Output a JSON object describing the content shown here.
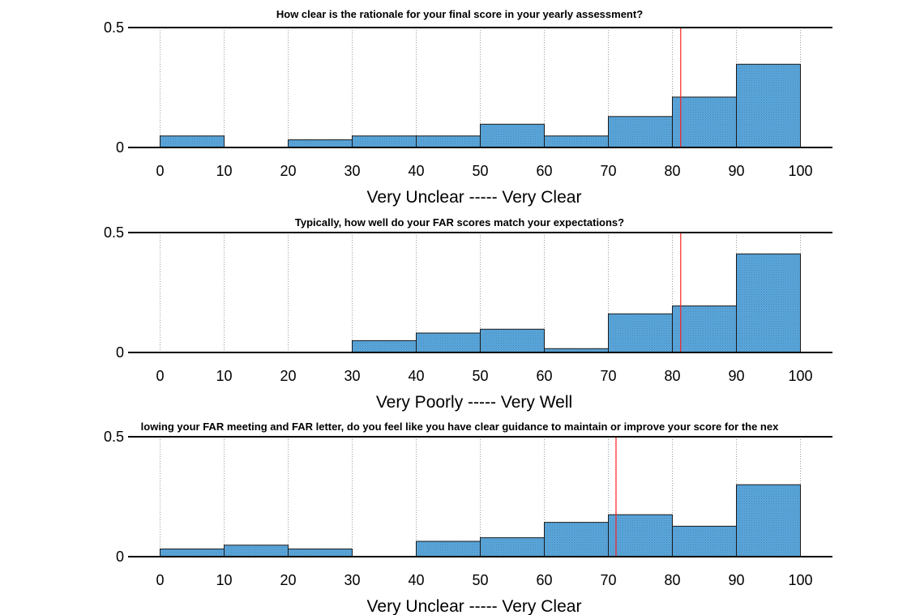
{
  "colors": {
    "bar_fill": "#5ba7dc",
    "bar_edge": "#1a1a1a",
    "mean_line": "#ff2020",
    "grid": "#9a9a9a",
    "axis": "#000000"
  },
  "chart_data": [
    {
      "type": "bar",
      "title": "How clear is the rationale for your final score in your yearly assessment?",
      "xlabel": "Very Unclear ----- Very Clear",
      "ylabel": "",
      "xlim": [
        -5,
        105
      ],
      "ylim": [
        0,
        0.5
      ],
      "xticks": [
        0,
        10,
        20,
        30,
        40,
        50,
        60,
        70,
        80,
        90,
        100
      ],
      "yticks": [
        0,
        0.5
      ],
      "grid": "vertical dotted",
      "bin_edges": [
        0,
        10,
        20,
        30,
        40,
        50,
        60,
        70,
        80,
        90,
        100
      ],
      "values": [
        0.048,
        0,
        0.032,
        0.048,
        0.048,
        0.097,
        0.048,
        0.129,
        0.21,
        0.347
      ],
      "mean_line": 81.3
    },
    {
      "type": "bar",
      "title": "Typically, how well do your FAR scores match your expectations?",
      "xlabel": "Very Poorly ----- Very Well",
      "ylabel": "",
      "xlim": [
        -5,
        105
      ],
      "ylim": [
        0,
        0.5
      ],
      "xticks": [
        0,
        10,
        20,
        30,
        40,
        50,
        60,
        70,
        80,
        90,
        100
      ],
      "yticks": [
        0,
        0.5
      ],
      "grid": "vertical dotted",
      "bin_edges": [
        0,
        10,
        20,
        30,
        40,
        50,
        60,
        70,
        80,
        90,
        100
      ],
      "values": [
        0,
        0,
        0,
        0.049,
        0.081,
        0.097,
        0.016,
        0.161,
        0.194,
        0.411
      ],
      "mean_line": 81.3
    },
    {
      "type": "bar",
      "title": "lowing your FAR meeting and FAR letter, do you feel like you have clear guidance to maintain or improve your score for the nex",
      "xlabel": "Very Unclear ----- Very Clear",
      "ylabel": "",
      "xlim": [
        -5,
        105
      ],
      "ylim": [
        0,
        0.5
      ],
      "xticks": [
        0,
        10,
        20,
        30,
        40,
        50,
        60,
        70,
        80,
        90,
        100
      ],
      "yticks": [
        0,
        0.5
      ],
      "grid": "vertical dotted",
      "bin_edges": [
        0,
        10,
        20,
        30,
        40,
        50,
        60,
        70,
        80,
        90,
        100
      ],
      "values": [
        0.032,
        0.048,
        0.032,
        0,
        0.064,
        0.079,
        0.143,
        0.175,
        0.127,
        0.3
      ],
      "mean_line": 71.2
    }
  ]
}
